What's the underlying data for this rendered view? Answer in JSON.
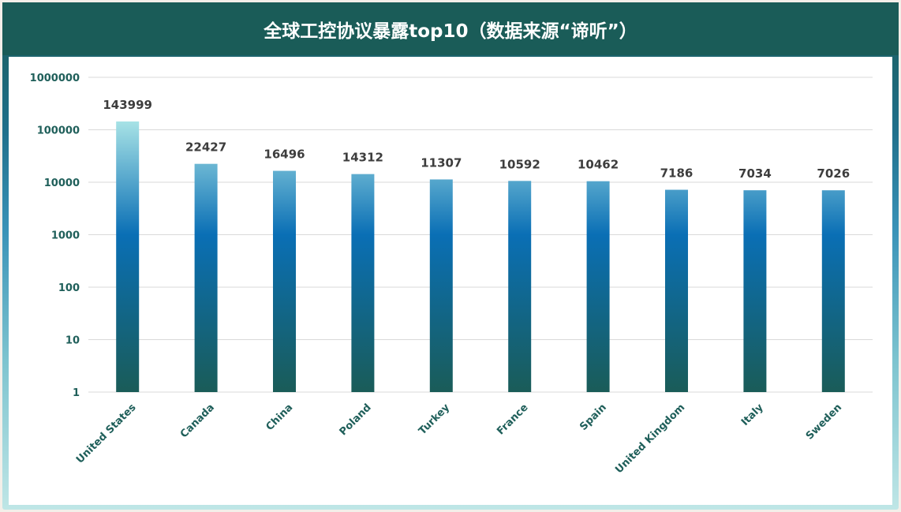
{
  "title": "全球工控协议暴露top10（数据来源“谛听”）",
  "colors": {
    "header": "#1a5c58",
    "bar_top": "#a8e3e6",
    "bar_mid": "#0a6fb5",
    "bar_bottom": "#1a5c58",
    "grid": "#d9d9d9",
    "axis_text": "#1f5f5a",
    "label_text": "#3d3d3d"
  },
  "chart_data": {
    "type": "bar",
    "title": "全球工控协议暴露top10（数据来源“谛听”）",
    "xlabel": "",
    "ylabel": "",
    "yscale": "log",
    "ylim": [
      1,
      1000000
    ],
    "yticks": [
      "1000000",
      "100000",
      "10000",
      "1000",
      "100",
      "10",
      "1"
    ],
    "grid": true,
    "categories": [
      "United States",
      "Canada",
      "China",
      "Poland",
      "Turkey",
      "France",
      "Spain",
      "United Kingdom",
      "Italy",
      "Sweden"
    ],
    "values": [
      143999,
      22427,
      16496,
      14312,
      11307,
      10592,
      10462,
      7186,
      7034,
      7026
    ],
    "data_labels": [
      "143999",
      "22427",
      "16496",
      "14312",
      "11307",
      "10592",
      "10462",
      "7186",
      "7034",
      "7026"
    ]
  }
}
